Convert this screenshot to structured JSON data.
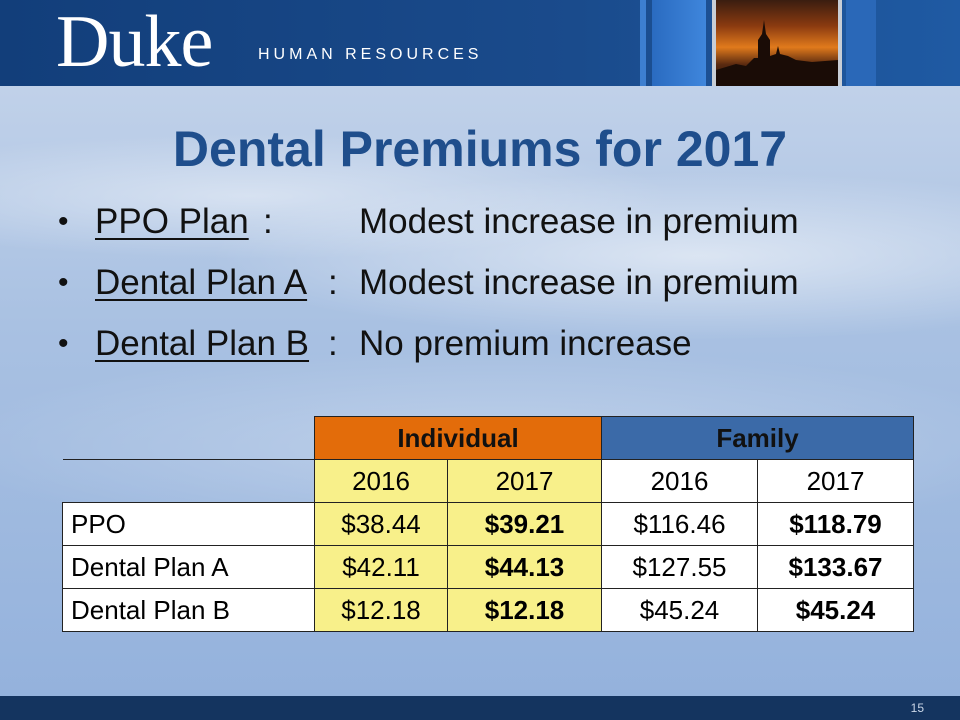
{
  "header": {
    "logo_word": "Duke",
    "logo_sub": "HUMAN RESOURCES"
  },
  "title": "Dental Premiums for 2017",
  "bullets": [
    {
      "plan": "PPO Plan",
      "sep": ":",
      "desc": "Modest increase in premium"
    },
    {
      "plan": "Dental Plan A",
      "sep": ":",
      "desc": "Modest increase in premium"
    },
    {
      "plan": "Dental Plan B",
      "sep": ":",
      "desc": "No premium increase"
    }
  ],
  "table": {
    "groups": [
      "Individual",
      "Family"
    ],
    "years": [
      "2016",
      "2017",
      "2016",
      "2017"
    ],
    "rows": [
      {
        "label": "PPO",
        "values": [
          "$38.44",
          "$39.21",
          "$116.46",
          "$118.79"
        ]
      },
      {
        "label": "Dental Plan A",
        "values": [
          "$42.11",
          "$44.13",
          "$127.55",
          "$133.67"
        ]
      },
      {
        "label": "Dental Plan B",
        "values": [
          "$12.18",
          "$12.18",
          "$45.24",
          "$45.24"
        ]
      }
    ]
  },
  "colors": {
    "title": "#1f4e8c",
    "individual_header": "#e36c0a",
    "family_header": "#3b6aa8",
    "individual_cells": "#f8f08a",
    "header_bar": "#1a4b8c"
  },
  "footer": {
    "page_number": "15"
  }
}
